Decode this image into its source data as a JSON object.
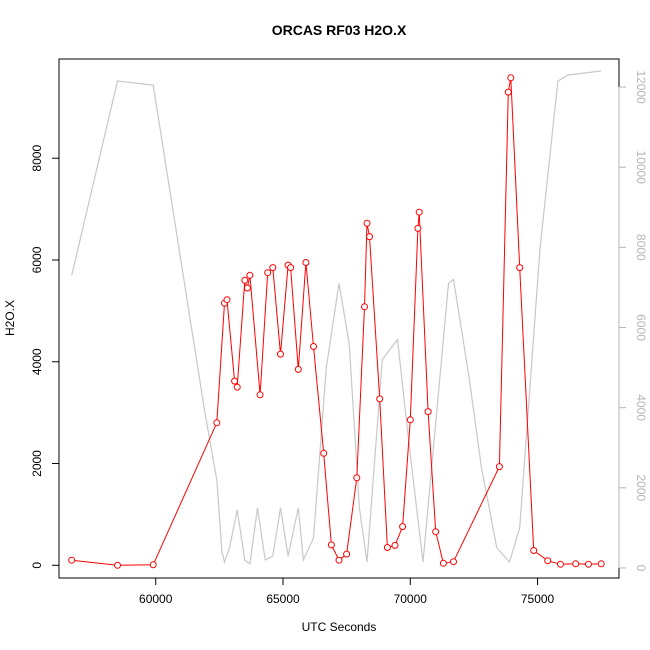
{
  "chart_data": {
    "type": "line",
    "title": "ORCAS RF03 H2O.X",
    "xlabel": "UTC Seconds",
    "ylabel": "H2O.X",
    "y2label": "",
    "xlim": [
      56200,
      78200
    ],
    "ylim": [
      -250,
      9950
    ],
    "y2lim": [
      -250,
      12700
    ],
    "xticks": [
      60000,
      65000,
      70000,
      75000
    ],
    "yticks": [
      0,
      2000,
      4000,
      6000,
      8000
    ],
    "y2ticks": [
      0,
      2000,
      4000,
      6000,
      8000,
      10000,
      12000
    ],
    "grid": false,
    "legend": "none",
    "colors": {
      "primary": "#ff0000",
      "secondary": "#c8c8c8",
      "axis": "#000000",
      "secondary_tick_labels": "#b5b5b5"
    },
    "series": [
      {
        "axis": "left",
        "style": "line-with-open-circles",
        "x": [
          56700,
          58500,
          59900,
          62400,
          62700,
          62800,
          63100,
          63200,
          63500,
          63600,
          63700,
          64100,
          64400,
          64600,
          64900,
          65200,
          65300,
          65600,
          65900,
          66200,
          66600,
          66900,
          67200,
          67500,
          67900,
          68200,
          68300,
          68400,
          68800,
          69100,
          69400,
          69700,
          70000,
          70300,
          70350,
          70700,
          71000,
          71300,
          71700,
          73500,
          73850,
          73950,
          74300,
          74850,
          75400,
          75900,
          76500,
          77000,
          77500
        ],
        "values": [
          100,
          0,
          10,
          2800,
          5150,
          5220,
          3620,
          3500,
          5600,
          5450,
          5700,
          3350,
          5750,
          5850,
          4150,
          5900,
          5850,
          3850,
          5950,
          4300,
          2200,
          400,
          100,
          220,
          1720,
          5080,
          6720,
          6460,
          3270,
          350,
          390,
          760,
          2860,
          6620,
          6940,
          3020,
          660,
          40,
          70,
          1940,
          9300,
          9580,
          5850,
          290,
          90,
          20,
          30,
          20,
          30
        ]
      },
      {
        "axis": "right",
        "style": "line",
        "x": [
          56700,
          58500,
          59900,
          61900,
          62400,
          62600,
          62700,
          62900,
          63200,
          63500,
          63700,
          64000,
          64300,
          64600,
          64900,
          65200,
          65600,
          65800,
          66200,
          66700,
          67200,
          67600,
          68000,
          68300,
          68900,
          69500,
          69950,
          70500,
          71500,
          71700,
          72300,
          72800,
          73400,
          73900,
          74300,
          74700,
          75100,
          75800,
          76200,
          77500
        ],
        "values": [
          7300,
          12150,
          12050,
          4000,
          2200,
          400,
          150,
          500,
          1450,
          200,
          100,
          1500,
          200,
          300,
          1500,
          300,
          1500,
          200,
          750,
          5000,
          7100,
          5600,
          1500,
          150,
          5200,
          5700,
          3100,
          150,
          7100,
          7200,
          4800,
          2500,
          500,
          150,
          1000,
          4500,
          8000,
          12150,
          12300,
          12400
        ]
      }
    ]
  }
}
